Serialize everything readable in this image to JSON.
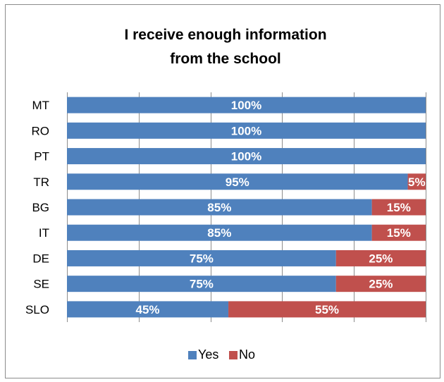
{
  "chart_data": {
    "type": "bar",
    "orientation": "horizontal",
    "stacked": true,
    "percent_stacked": true,
    "title_lines": [
      "I receive enough information",
      "from the school"
    ],
    "categories": [
      "MT",
      "RO",
      "PT",
      "TR",
      "BG",
      "IT",
      "DE",
      "SE",
      "SLO"
    ],
    "series": [
      {
        "name": "Yes",
        "color": "#4f81bd",
        "values": [
          100,
          100,
          100,
          95,
          85,
          85,
          75,
          75,
          45
        ]
      },
      {
        "name": "No",
        "color": "#c0504d",
        "values": [
          0,
          0,
          0,
          5,
          15,
          15,
          25,
          25,
          55
        ]
      }
    ],
    "data_label_suffix": "%",
    "xlim": [
      0,
      100
    ],
    "gridlines": "vertical",
    "legend_position": "bottom"
  }
}
